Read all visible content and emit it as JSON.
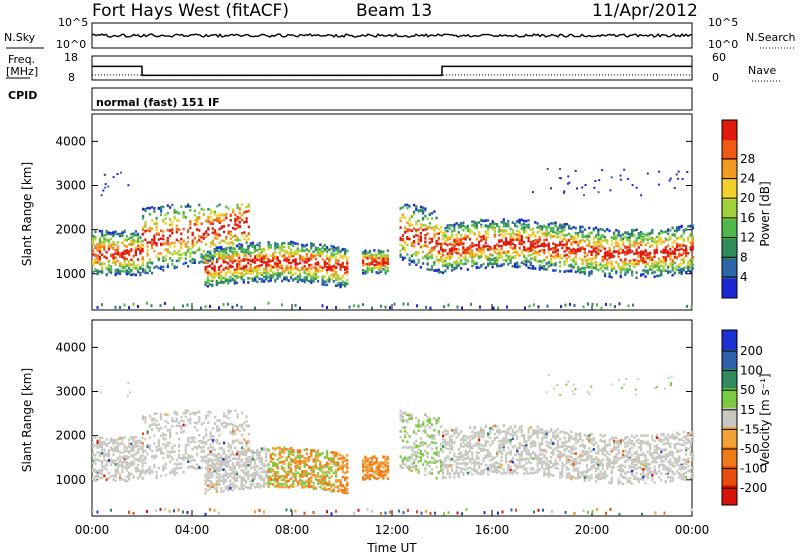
{
  "header": {
    "station": "Fort Hays West (fitACF)",
    "beam": "Beam 13",
    "date": "11/Apr/2012",
    "nsky_label": "N.Sky",
    "nsearch_label": "N.Search",
    "freq_label_1": "Freq.",
    "freq_label_2": "[MHz]",
    "nave_label": "Nave",
    "cpid_label": "CPID",
    "cpid_value": "normal (fast) 151 IF",
    "left_ticks_top": [
      "10^5",
      "10^0"
    ],
    "right_ticks_top": [
      "10^5",
      "10^0"
    ],
    "freq_ticks": [
      "18",
      "8"
    ],
    "nave_ticks": [
      "60",
      "0"
    ]
  },
  "colors": {
    "power": [
      "#1c27d4",
      "#2c66a8",
      "#2f8a5a",
      "#4fb84a",
      "#9fd23a",
      "#f1d22b",
      "#f39a20",
      "#f05a12",
      "#df1a0c"
    ],
    "velocity": [
      "#1c2fd2",
      "#2c5fae",
      "#2f8a5e",
      "#7acb41",
      "#c8c8c1",
      "#f2a338",
      "#ef7a17",
      "#e84b0c",
      "#d6120a"
    ]
  },
  "chart_data": [
    {
      "type": "heatmap",
      "title": "",
      "xlabel": "Time UT",
      "ylabel": "Slant Range [km]",
      "x_ticks": [
        "00:00",
        "04:00",
        "08:00",
        "12:00",
        "16:00",
        "20:00",
        "00:00"
      ],
      "y_ticks": [
        "1000",
        "2000",
        "3000",
        "4000"
      ],
      "xlim_hours": [
        0,
        24
      ],
      "ylim_km": [
        180,
        4620
      ],
      "colorbar": {
        "label": "Power [dB]",
        "ticks": [
          "4",
          "8",
          "12",
          "16",
          "20",
          "24",
          "28"
        ],
        "range": [
          0,
          30
        ]
      }
    },
    {
      "type": "heatmap",
      "title": "",
      "xlabel": "Time UT",
      "ylabel": "Slant Range [km]",
      "x_ticks": [
        "00:00",
        "04:00",
        "08:00",
        "12:00",
        "16:00",
        "20:00",
        "00:00"
      ],
      "y_ticks": [
        "1000",
        "2000",
        "3000",
        "4000"
      ],
      "xlim_hours": [
        0,
        24
      ],
      "ylim_km": [
        180,
        4620
      ],
      "colorbar": {
        "label": "Velocity [m s⁻¹]",
        "ticks": [
          "200",
          "100",
          "50",
          "15",
          "-15",
          "-50",
          "-100",
          "-200"
        ],
        "range": [
          -250,
          250
        ]
      }
    }
  ],
  "frequency_mhz": [
    {
      "start": "00:00",
      "end": "02:00",
      "value": 15
    },
    {
      "start": "02:00",
      "end": "14:00",
      "value": 10
    },
    {
      "start": "14:00",
      "end": "24:00",
      "value": 15
    }
  ]
}
